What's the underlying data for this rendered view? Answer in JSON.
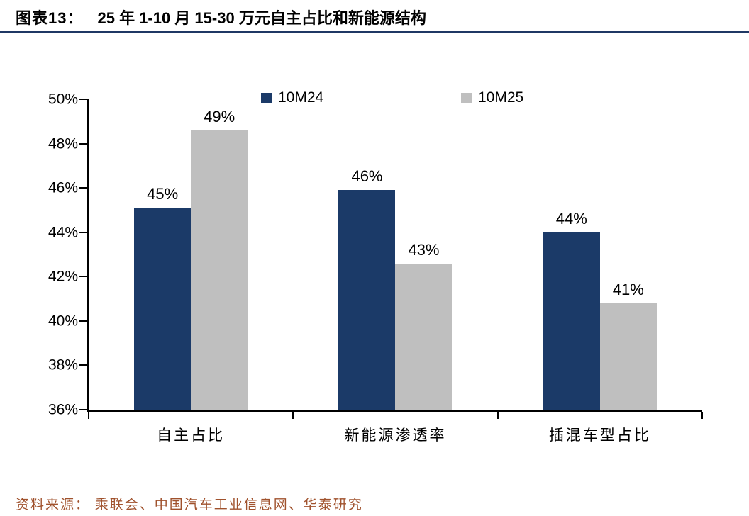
{
  "title": {
    "prefix": "图表13：",
    "text": "25 年 1-10 月 15-30 万元自主占比和新能源结构"
  },
  "footer": {
    "source": "资料来源： 乘联会、中国汽车工业信息网、华泰研究"
  },
  "colors": {
    "navy": "#1b3a68",
    "gray": "#bfbfbf",
    "title_rule": "#1f3864",
    "source_text": "#a0522d",
    "footer_rule": "#c9c9c9"
  },
  "chart_data": {
    "type": "bar",
    "title": "25 年 1-10 月 15-30 万元自主占比和新能源结构",
    "categories": [
      "自主占比",
      "新能源渗透率",
      "插混车型占比"
    ],
    "series": [
      {
        "name": "10M24",
        "color": "#1b3a68",
        "values": [
          45.1,
          45.9,
          44.0
        ],
        "labels": [
          "45%",
          "46%",
          "44%"
        ]
      },
      {
        "name": "10M25",
        "color": "#bfbfbf",
        "values": [
          48.6,
          42.6,
          40.8
        ],
        "labels": [
          "49%",
          "43%",
          "41%"
        ]
      }
    ],
    "ylim": [
      36,
      50
    ],
    "ytick_step": 2,
    "ytick_labels": [
      "36%",
      "38%",
      "40%",
      "42%",
      "44%",
      "46%",
      "48%",
      "50%"
    ],
    "xlabel": "",
    "ylabel": "",
    "grid": false,
    "legend_position": "top"
  }
}
